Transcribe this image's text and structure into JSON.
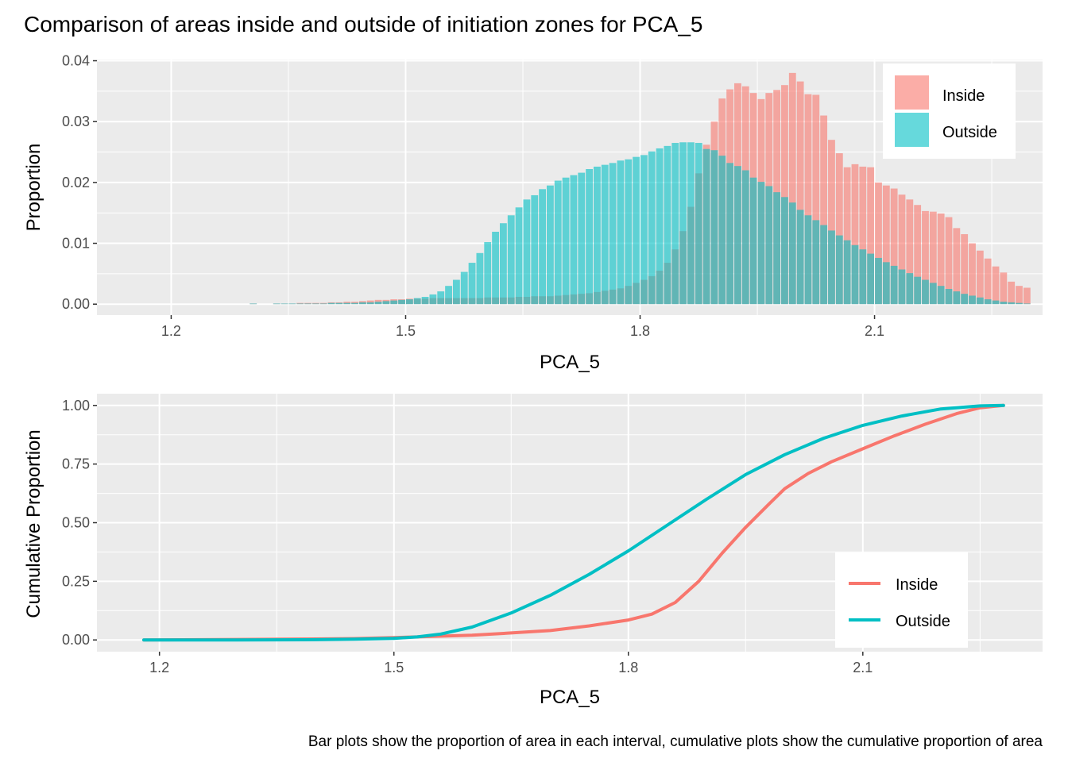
{
  "figure": {
    "title": "Comparison of areas inside and outside of initiation zones for PCA_5",
    "caption": "Bar plots show the proportion of area in each interval, cumulative plots show the cumulative proportion of area"
  },
  "colors": {
    "inside": "#F8766D",
    "outside": "#00BFC4",
    "panel_bg": "#EBEBEB",
    "grid": "#FFFFFF"
  },
  "chart_data": [
    {
      "type": "bar",
      "title": "",
      "xlabel": "PCA_5",
      "ylabel": "Proportion",
      "xlim": [
        1.105,
        2.315
      ],
      "ylim": [
        -0.0018,
        0.0402
      ],
      "x_ticks": [
        1.2,
        1.5,
        1.8,
        2.1
      ],
      "x_tick_labels": [
        "1.2",
        "1.5",
        "1.8",
        "2.1"
      ],
      "y_ticks": [
        0,
        0.01,
        0.02,
        0.03,
        0.04
      ],
      "y_tick_labels": [
        "0.00",
        "0.01",
        "0.02",
        "0.03",
        "0.04"
      ],
      "grid": true,
      "legend_position": "top-right",
      "bin_start": 1.1,
      "bin_width": 0.01,
      "series": [
        {
          "name": "Inside",
          "color": "#F8766D",
          "values": [
            0,
            0,
            0,
            0,
            0,
            0,
            0,
            0,
            0,
            0,
            0,
            0,
            0,
            0,
            0,
            0,
            0,
            0,
            0,
            0,
            0.0001,
            0,
            0,
            0.0001,
            0.0001,
            0.0001,
            0.0002,
            0.0002,
            0.0002,
            0.0002,
            0.0003,
            0.0003,
            0.0004,
            0.0004,
            0.0005,
            0.0006,
            0.0007,
            0.0007,
            0.0008,
            0.0008,
            0.0009,
            0.0009,
            0.0009,
            0.001,
            0.001,
            0.001,
            0.001,
            0.001,
            0.001,
            0.001,
            0.0011,
            0.0011,
            0.0011,
            0.0011,
            0.0012,
            0.0012,
            0.0013,
            0.0013,
            0.0013,
            0.0014,
            0.0015,
            0.0016,
            0.0017,
            0.0018,
            0.002,
            0.0022,
            0.0024,
            0.0026,
            0.003,
            0.0035,
            0.004,
            0.0046,
            0.0055,
            0.0068,
            0.009,
            0.012,
            0.016,
            0.0215,
            0.0262,
            0.03,
            0.0338,
            0.0353,
            0.0363,
            0.0358,
            0.0347,
            0.0337,
            0.0347,
            0.0352,
            0.036,
            0.038,
            0.0366,
            0.0345,
            0.0344,
            0.031,
            0.027,
            0.0248,
            0.0225,
            0.023,
            0.0226,
            0.0225,
            0.02,
            0.0195,
            0.019,
            0.018,
            0.0172,
            0.0163,
            0.0153,
            0.0152,
            0.0149,
            0.0143,
            0.0125,
            0.0115,
            0.01,
            0.0088,
            0.0075,
            0.0062,
            0.0052,
            0.0037,
            0.003,
            0.0027
          ]
        },
        {
          "name": "Outside",
          "color": "#00BFC4",
          "values": [
            0,
            0,
            0,
            0,
            0,
            0,
            0,
            0,
            0,
            0,
            0,
            0,
            0,
            0,
            0,
            0,
            0,
            0,
            0,
            0,
            0.0001,
            0,
            0,
            0.0001,
            0.0001,
            0.0001,
            0.0001,
            0.0001,
            0.0001,
            0.0001,
            0.0002,
            0.0002,
            0.0002,
            0.0002,
            0.0003,
            0.0003,
            0.0004,
            0.0005,
            0.0006,
            0.0007,
            0.0008,
            0.001,
            0.0012,
            0.0016,
            0.0021,
            0.003,
            0.004,
            0.0053,
            0.0068,
            0.0084,
            0.0102,
            0.0119,
            0.0133,
            0.0146,
            0.0159,
            0.0172,
            0.0179,
            0.0189,
            0.0195,
            0.0203,
            0.0208,
            0.0212,
            0.0216,
            0.0222,
            0.0226,
            0.0229,
            0.0232,
            0.0236,
            0.0238,
            0.0242,
            0.0245,
            0.0251,
            0.0256,
            0.026,
            0.0265,
            0.0266,
            0.0266,
            0.0265,
            0.0255,
            0.0253,
            0.0244,
            0.0232,
            0.0227,
            0.022,
            0.0208,
            0.0201,
            0.0194,
            0.0184,
            0.0176,
            0.0167,
            0.0155,
            0.0146,
            0.0138,
            0.013,
            0.0121,
            0.0113,
            0.0105,
            0.0097,
            0.009,
            0.0083,
            0.0076,
            0.0069,
            0.0063,
            0.0057,
            0.0051,
            0.0045,
            0.004,
            0.0035,
            0.003,
            0.0025,
            0.0021,
            0.0017,
            0.0014,
            0.0011,
            0.0008,
            0.0006,
            0.0004,
            0.0003,
            0.0002,
            0.0001
          ]
        }
      ]
    },
    {
      "type": "line",
      "title": "",
      "xlabel": "PCA_5",
      "ylabel": "Cumulative Proportion",
      "xlim": [
        1.12,
        2.33
      ],
      "ylim": [
        -0.05,
        1.05
      ],
      "x_ticks": [
        1.2,
        1.5,
        1.8,
        2.1
      ],
      "x_tick_labels": [
        "1.2",
        "1.5",
        "1.8",
        "2.1"
      ],
      "y_ticks": [
        0,
        0.25,
        0.5,
        0.75,
        1.0
      ],
      "y_tick_labels": [
        "0.00",
        "0.25",
        "0.50",
        "0.75",
        "1.00"
      ],
      "grid": true,
      "legend_position": "bottom-right",
      "series": [
        {
          "name": "Inside",
          "color": "#F8766D",
          "x": [
            1.18,
            1.3,
            1.4,
            1.45,
            1.5,
            1.55,
            1.6,
            1.65,
            1.7,
            1.75,
            1.8,
            1.83,
            1.86,
            1.89,
            1.92,
            1.95,
            1.98,
            2.0,
            2.03,
            2.06,
            2.1,
            2.14,
            2.18,
            2.22,
            2.25,
            2.28
          ],
          "y": [
            0,
            0.002,
            0.004,
            0.006,
            0.01,
            0.015,
            0.02,
            0.03,
            0.04,
            0.06,
            0.085,
            0.11,
            0.16,
            0.25,
            0.37,
            0.48,
            0.58,
            0.645,
            0.71,
            0.76,
            0.815,
            0.87,
            0.92,
            0.965,
            0.99,
            1.0
          ]
        },
        {
          "name": "Outside",
          "color": "#00BFC4",
          "x": [
            1.18,
            1.3,
            1.4,
            1.45,
            1.5,
            1.53,
            1.56,
            1.6,
            1.65,
            1.7,
            1.75,
            1.8,
            1.85,
            1.9,
            1.95,
            2.0,
            2.05,
            2.1,
            2.15,
            2.2,
            2.25,
            2.28
          ],
          "y": [
            0,
            0,
            0.001,
            0.003,
            0.007,
            0.013,
            0.025,
            0.055,
            0.115,
            0.19,
            0.28,
            0.38,
            0.49,
            0.6,
            0.705,
            0.79,
            0.86,
            0.915,
            0.955,
            0.985,
            0.998,
            1.0
          ]
        }
      ]
    }
  ]
}
